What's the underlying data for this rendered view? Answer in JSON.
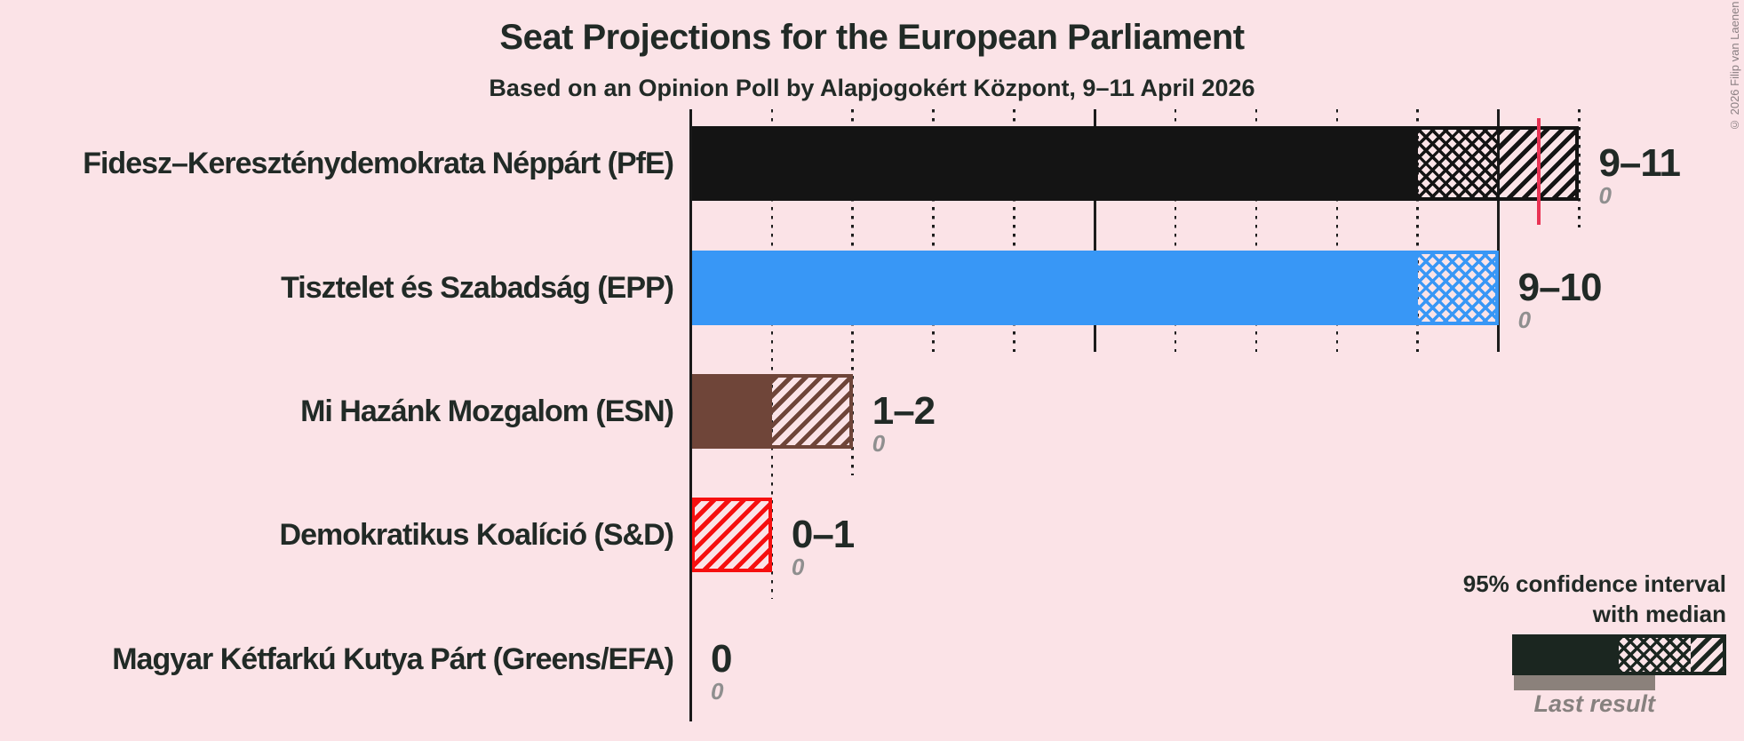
{
  "title": "Seat Projections for the European Parliament",
  "subtitle": "Based on an Opinion Poll by Alapjogokért Központ, 9–11 April 2026",
  "copyright": "© 2026 Filip van Laenen",
  "legend": {
    "ci_label": "95% confidence interval with median",
    "ci_label_line1": "95% confidence interval",
    "ci_label_line2": "with median",
    "last_result_label": "Last result"
  },
  "colors": {
    "background": "#fbe3e7",
    "text": "#212a26",
    "gray_value": "#8f8f8f",
    "majority_line": "#e93354",
    "legend_sample": "#1b2620",
    "last_result_bar": "#8b817b"
  },
  "chart_data": {
    "type": "bar",
    "orientation": "horizontal",
    "unit": "seats",
    "x_axis": {
      "min": 0,
      "max": 13,
      "gridline_every": 1,
      "solid_line_every": 5,
      "tick_labels_shown": false
    },
    "majority_line_seats": 10.5,
    "rows": [
      {
        "party": "Fidesz–Kereszténydemokrata Néppárt (PfE)",
        "color": "#141414",
        "ci_low": 9,
        "median": 10,
        "ci_high": 11,
        "range_label": "9–11",
        "last_result": 0,
        "last_result_label": "0"
      },
      {
        "party": "Tisztelet és Szabadság (EPP)",
        "color": "#3897f6",
        "ci_low": 9,
        "median": 10,
        "ci_high": 10,
        "range_label": "9–10",
        "last_result": 0,
        "last_result_label": "0"
      },
      {
        "party": "Mi Hazánk Mozgalom (ESN)",
        "color": "#6f4539",
        "ci_low": 1,
        "median": 1,
        "ci_high": 2,
        "range_label": "1–2",
        "last_result": 0,
        "last_result_label": "0"
      },
      {
        "party": "Demokratikus Koalíció (S&D)",
        "color": "#f60f0f",
        "ci_low": 0,
        "median": 0,
        "ci_high": 1,
        "range_label": "0–1",
        "last_result": 0,
        "last_result_label": "0"
      },
      {
        "party": "Magyar Kétfarkú Kutya Párt (Greens/EFA)",
        "color": "#3aa208",
        "ci_low": 0,
        "median": 0,
        "ci_high": 0,
        "range_label": "0",
        "last_result": 0,
        "last_result_label": "0"
      }
    ]
  }
}
